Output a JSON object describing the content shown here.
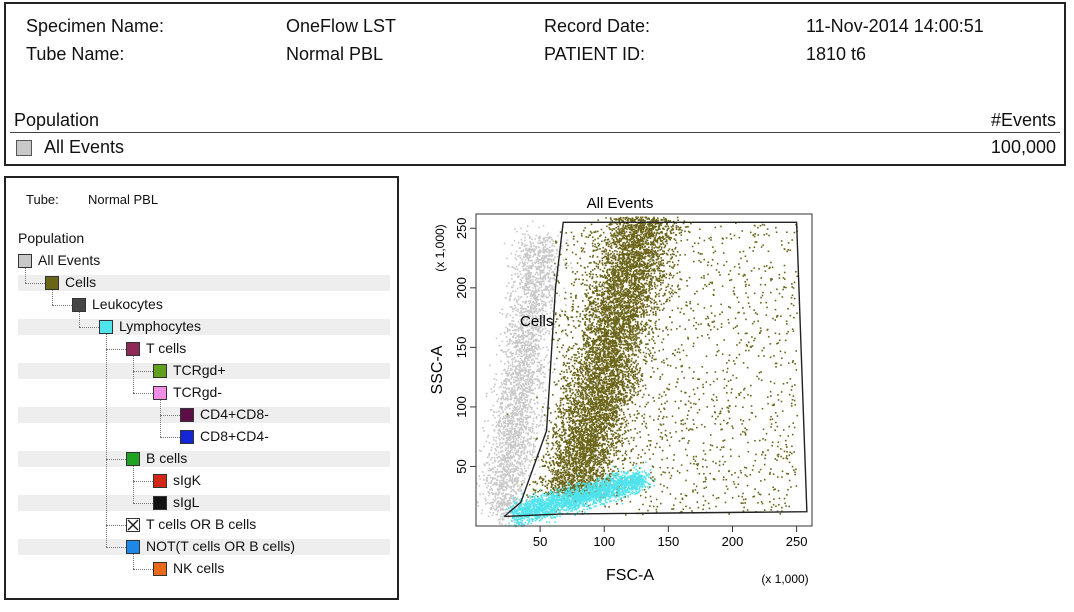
{
  "header": {
    "specimen_name_label": "Specimen Name:",
    "specimen_name_value": "OneFlow LST",
    "tube_name_label": "Tube Name:",
    "tube_name_value": "Normal PBL",
    "record_date_label": "Record Date:",
    "record_date_value": "11-Nov-2014 14:00:51",
    "patient_id_label": "PATIENT ID:",
    "patient_id_value": "1810 t6",
    "population_header": "Population",
    "events_header": "#Events",
    "row_label": "All Events",
    "row_value": "100,000",
    "row_color": "#c8c8c8"
  },
  "hierarchy": {
    "tube_label": "Tube:",
    "tube_value": "Normal PBL",
    "population_header": "Population",
    "nodes": [
      {
        "label": "All Events",
        "color": "#c8c8c8",
        "level": 0
      },
      {
        "label": "Cells",
        "color": "#6b6519",
        "level": 1
      },
      {
        "label": "Leukocytes",
        "color": "#454545",
        "level": 2
      },
      {
        "label": "Lymphocytes",
        "color": "#4fe3ec",
        "level": 3
      },
      {
        "label": "T cells",
        "color": "#8e2a55",
        "level": 4
      },
      {
        "label": "TCRgd+",
        "color": "#5fa11f",
        "level": 5
      },
      {
        "label": "TCRgd-",
        "color": "#f08ee6",
        "level": 5
      },
      {
        "label": "CD4+CD8-",
        "color": "#5c0f47",
        "level": 6
      },
      {
        "label": "CD8+CD4-",
        "color": "#1426d8",
        "level": 6
      },
      {
        "label": "B cells",
        "color": "#21a321",
        "level": 4
      },
      {
        "label": "sIgK",
        "color": "#d12618",
        "level": 5
      },
      {
        "label": "sIgL",
        "color": "#111111",
        "level": 5
      },
      {
        "label": "T cells OR B cells",
        "color": "boolean-icon",
        "level": 4
      },
      {
        "label": "NOT(T cells OR B cells)",
        "color": "#1e88e8",
        "level": 4
      },
      {
        "label": "NK cells",
        "color": "#ea6a1c",
        "level": 5
      }
    ]
  },
  "plot": {
    "title": "All Events",
    "gate_label": "Cells",
    "x_label": "FSC-A",
    "y_label": "SSC-A",
    "x_multiplier": "(x 1,000)",
    "y_multiplier": "(x 1,000)",
    "x_ticks": [
      "50",
      "100",
      "150",
      "200",
      "250"
    ],
    "y_ticks": [
      "50",
      "100",
      "150",
      "200",
      "250"
    ],
    "colors": {
      "all_events": "#c8c8c8",
      "cells": "#6b6519",
      "lymphocytes": "#4fe3ec"
    }
  },
  "chart_data": {
    "type": "scatter",
    "title": "All Events",
    "xlabel": "FSC-A",
    "ylabel": "SSC-A",
    "xlim": [
      0,
      262
    ],
    "ylim": [
      0,
      262
    ],
    "x_ticks": [
      50,
      100,
      150,
      200,
      250
    ],
    "y_ticks": [
      50,
      100,
      150,
      200,
      250
    ],
    "series": [
      {
        "name": "All Events",
        "color": "#c8c8c8",
        "center": [
          40,
          70
        ],
        "spread": [
          18,
          55
        ]
      },
      {
        "name": "Cells",
        "color": "#6b6519",
        "center": [
          120,
          150
        ],
        "spread": [
          22,
          70
        ]
      },
      {
        "name": "Lymphocytes",
        "color": "#4fe3ec",
        "center": [
          80,
          18
        ],
        "spread": [
          40,
          8
        ]
      }
    ],
    "gate": {
      "name": "Cells",
      "vertices": [
        [
          22,
          8
        ],
        [
          35,
          20
        ],
        [
          55,
          80
        ],
        [
          62,
          200
        ],
        [
          68,
          255
        ],
        [
          250,
          255
        ],
        [
          258,
          12
        ],
        [
          65,
          10
        ],
        [
          22,
          8
        ]
      ]
    }
  }
}
